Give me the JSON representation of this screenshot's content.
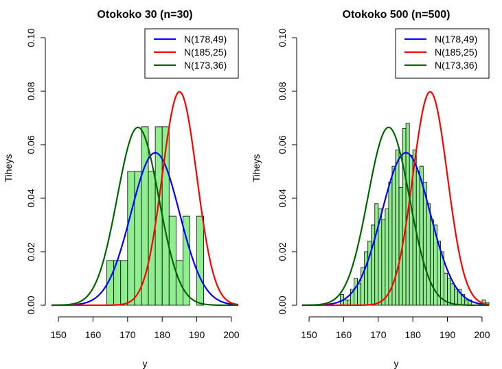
{
  "chart_data": [
    {
      "type": "bar",
      "title": "Otokoko 30 (n=30)",
      "xlabel": "y",
      "ylabel": "Tiheys",
      "xlim": [
        148,
        202
      ],
      "ylim": [
        0,
        0.1
      ],
      "xticks": [
        "150",
        "160",
        "170",
        "180",
        "190",
        "200"
      ],
      "yticks": [
        "0.00",
        "0.02",
        "0.04",
        "0.06",
        "0.08",
        "0.10"
      ],
      "bar_color": "#90ee90",
      "histogram": {
        "bin_width": 2,
        "bin_starts": [
          164,
          166,
          168,
          170,
          172,
          174,
          176,
          178,
          180,
          182,
          184,
          186,
          188,
          190
        ],
        "values": [
          0.0167,
          0.0167,
          0.0167,
          0.05,
          0.05,
          0.0667,
          0.05,
          0.0667,
          0.0667,
          0.0333,
          0.0167,
          0.0333,
          0.0,
          0.0333
        ]
      },
      "series": [
        {
          "name": "N(178,49)",
          "mean": 178,
          "variance": 49,
          "color": "#0000ff"
        },
        {
          "name": "N(185,25)",
          "mean": 185,
          "variance": 25,
          "color": "#ff0000"
        },
        {
          "name": "N(173,36)",
          "mean": 173,
          "variance": 36,
          "color": "#006400"
        }
      ],
      "legend": "top-right",
      "grid": false
    },
    {
      "type": "bar",
      "title": "Otokoko 500 (n=500)",
      "xlabel": "y",
      "ylabel": "Tiheys",
      "xlim": [
        148,
        202
      ],
      "ylim": [
        0,
        0.1
      ],
      "xticks": [
        "150",
        "160",
        "170",
        "180",
        "190",
        "200"
      ],
      "yticks": [
        "0.00",
        "0.02",
        "0.04",
        "0.06",
        "0.08",
        "0.10"
      ],
      "bar_color": "#90ee90",
      "histogram": {
        "bin_width": 1,
        "bin_starts": [
          159,
          160,
          161,
          162,
          163,
          164,
          165,
          166,
          167,
          168,
          169,
          170,
          171,
          172,
          173,
          174,
          175,
          176,
          177,
          178,
          179,
          180,
          181,
          182,
          183,
          184,
          185,
          186,
          187,
          188,
          189,
          190,
          191,
          192,
          193,
          194,
          195,
          196,
          197,
          198,
          199,
          200,
          201
        ],
        "values": [
          0.004,
          0.002,
          0.002,
          0.006,
          0.01,
          0.008,
          0.014,
          0.02,
          0.024,
          0.03,
          0.038,
          0.036,
          0.032,
          0.036,
          0.046,
          0.052,
          0.058,
          0.044,
          0.066,
          0.068,
          0.056,
          0.058,
          0.05,
          0.052,
          0.046,
          0.038,
          0.032,
          0.03,
          0.024,
          0.02,
          0.012,
          0.01,
          0.008,
          0.006,
          0.006,
          0.004,
          0.002,
          0.002,
          0.0,
          0.0,
          0.0,
          0.002,
          0.001
        ]
      },
      "series": [
        {
          "name": "N(178,49)",
          "mean": 178,
          "variance": 49,
          "color": "#0000ff"
        },
        {
          "name": "N(185,25)",
          "mean": 185,
          "variance": 25,
          "color": "#ff0000"
        },
        {
          "name": "N(173,36)",
          "mean": 173,
          "variance": 36,
          "color": "#006400"
        }
      ],
      "legend": "top-right",
      "grid": false
    }
  ]
}
